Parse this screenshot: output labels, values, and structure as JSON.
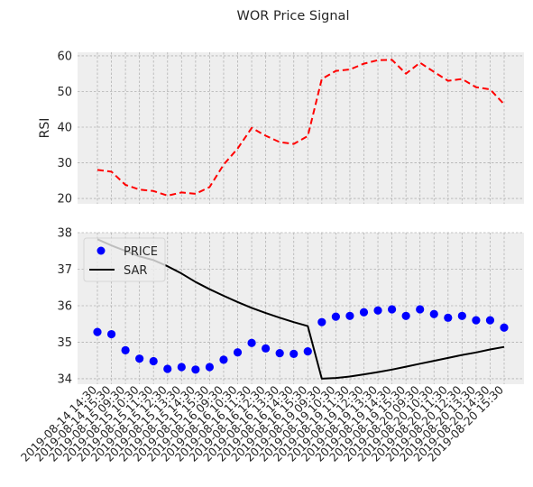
{
  "chart_data": {
    "title": "WOR Price Signal",
    "x": [
      "2019-08-14 14:30",
      "2019-08-14 15:30",
      "2019-08-15 09:30",
      "2019-08-15 10:30",
      "2019-08-15 11:30",
      "2019-08-15 12:30",
      "2019-08-15 13:30",
      "2019-08-15 14:30",
      "2019-08-15 15:30",
      "2019-08-16 09:30",
      "2019-08-16 10:30",
      "2019-08-16 11:30",
      "2019-08-16 12:30",
      "2019-08-16 13:30",
      "2019-08-16 14:30",
      "2019-08-16 15:30",
      "2019-08-19 09:30",
      "2019-08-19 10:30",
      "2019-08-19 11:30",
      "2019-08-19 12:30",
      "2019-08-19 13:30",
      "2019-08-19 14:30",
      "2019-08-19 15:30",
      "2019-08-20 09:30",
      "2019-08-20 10:30",
      "2019-08-20 11:30",
      "2019-08-20 12:30",
      "2019-08-20 13:30",
      "2019-08-20 14:30",
      "2019-08-20 15:30"
    ],
    "panels": [
      {
        "type": "line",
        "ylabel": "RSI",
        "ylim": [
          18.5,
          61
        ],
        "yticks": [
          20,
          30,
          40,
          50,
          60
        ],
        "grid": true,
        "series": [
          {
            "style": "dashed",
            "color": "#ff0000",
            "values": [
              28.0,
              27.5,
              23.8,
              22.5,
              22.1,
              20.8,
              21.7,
              21.3,
              23.2,
              29.5,
              34.0,
              39.8,
              37.6,
              35.8,
              35.3,
              37.5,
              53.5,
              55.8,
              56.2,
              57.8,
              58.8,
              58.9,
              55.0,
              58.1,
              55.5,
              53.0,
              53.5,
              51.2,
              50.6,
              46.4
            ]
          }
        ]
      },
      {
        "type": "line+scatter",
        "ylim": [
          33.85,
          38.0
        ],
        "yticks": [
          34,
          35,
          36,
          37,
          38
        ],
        "grid": true,
        "legend": "upper-left",
        "series": [
          {
            "name": "PRICE",
            "kind": "scatter",
            "color": "#0000ff",
            "values": [
              35.28,
              35.22,
              34.78,
              34.55,
              34.48,
              34.27,
              34.32,
              34.25,
              34.32,
              34.52,
              34.72,
              34.98,
              34.83,
              34.7,
              34.68,
              34.75,
              35.55,
              35.7,
              35.72,
              35.82,
              35.87,
              35.9,
              35.72,
              35.9,
              35.77,
              35.67,
              35.72,
              35.6,
              35.6,
              35.4
            ]
          },
          {
            "name": "SAR",
            "kind": "line",
            "color": "#000000",
            "values": [
              37.82,
              37.65,
              37.5,
              37.35,
              37.25,
              37.08,
              36.88,
              36.65,
              36.45,
              36.27,
              36.1,
              35.94,
              35.8,
              35.67,
              35.55,
              35.44,
              34.0,
              34.02,
              34.06,
              34.12,
              34.18,
              34.25,
              34.33,
              34.41,
              34.49,
              34.57,
              34.65,
              34.72,
              34.8,
              34.87
            ]
          }
        ]
      }
    ]
  }
}
